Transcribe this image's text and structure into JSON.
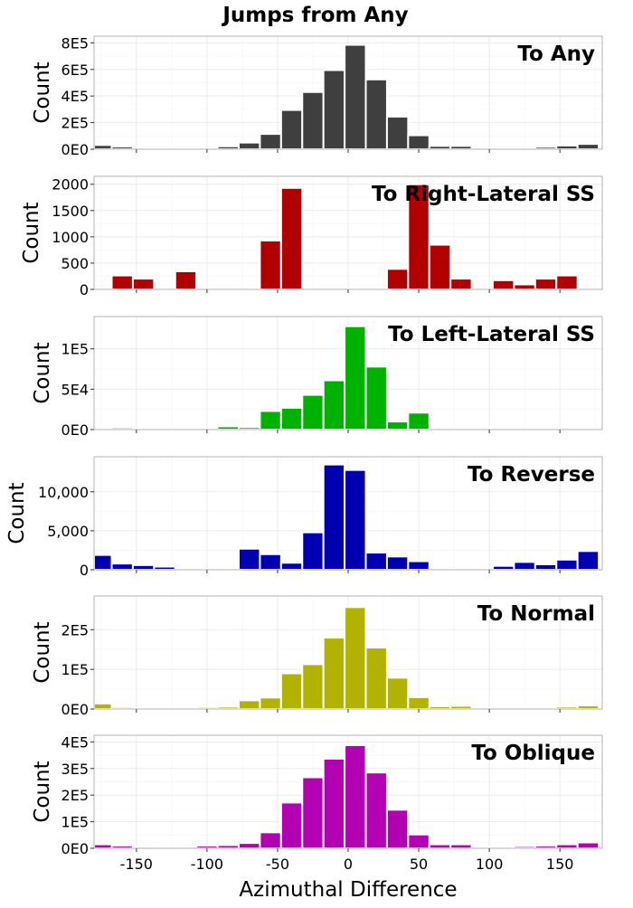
{
  "figure_title": "Jumps from Any",
  "x_axis_label": "Azimuthal Difference",
  "chart_data": [
    {
      "type": "bar",
      "title": "To Any",
      "xlabel": "Azimuthal Difference",
      "ylabel": "Count",
      "color": "#3f3f3f",
      "xlim": [
        -180,
        180
      ],
      "ylim": [
        0,
        850000
      ],
      "yticks": [
        0,
        200000,
        400000,
        600000,
        800000
      ],
      "ytick_labels": [
        "0E0",
        "2E5",
        "4E5",
        "6E5",
        "8E5"
      ],
      "x": [
        -175,
        -160,
        -145,
        -130,
        -115,
        -100,
        -85,
        -70,
        -55,
        -40,
        -25,
        -10,
        5,
        20,
        35,
        50,
        65,
        80,
        95,
        110,
        125,
        140,
        155,
        170
      ],
      "values": [
        32000,
        20000,
        12000,
        8000,
        8000,
        12000,
        22000,
        50000,
        115000,
        295000,
        430000,
        595000,
        785000,
        525000,
        245000,
        105000,
        25000,
        25000,
        10000,
        10000,
        12000,
        18000,
        28000,
        40000
      ]
    },
    {
      "type": "bar",
      "title": "To Right-Lateral SS",
      "xlabel": "Azimuthal Difference",
      "ylabel": "Count",
      "color": "#b20000",
      "xlim": [
        -180,
        180
      ],
      "ylim": [
        0,
        2150
      ],
      "yticks": [
        0,
        500,
        1000,
        1500,
        2000
      ],
      "ytick_labels": [
        "0",
        "500",
        "1000",
        "1500",
        "2000"
      ],
      "x": [
        -175,
        -160,
        -145,
        -130,
        -115,
        -100,
        -85,
        -70,
        -55,
        -40,
        -25,
        -10,
        5,
        20,
        35,
        50,
        65,
        80,
        95,
        110,
        125,
        140,
        155,
        170
      ],
      "values": [
        0,
        265,
        205,
        0,
        345,
        0,
        0,
        0,
        930,
        1930,
        0,
        15,
        15,
        0,
        390,
        2000,
        850,
        205,
        0,
        175,
        95,
        205,
        265,
        0
      ]
    },
    {
      "type": "bar",
      "title": "To Left-Lateral SS",
      "xlabel": "Azimuthal Difference",
      "ylabel": "Count",
      "color": "#00b200",
      "xlim": [
        -180,
        180
      ],
      "ylim": [
        0,
        140000
      ],
      "yticks": [
        0,
        50000,
        100000
      ],
      "ytick_labels": [
        "0E0",
        "5E4",
        "1E5"
      ],
      "x": [
        -175,
        -160,
        -145,
        -130,
        -115,
        -100,
        -85,
        -70,
        -55,
        -40,
        -25,
        -10,
        5,
        20,
        35,
        50,
        65,
        80,
        95,
        110,
        125,
        140,
        155,
        170
      ],
      "values": [
        1500,
        2500,
        1000,
        500,
        0,
        500,
        4000,
        3000,
        23000,
        27000,
        43000,
        61000,
        128000,
        78000,
        10000,
        21000,
        0,
        1000,
        2000,
        1000,
        0,
        1500,
        2000,
        2000
      ]
    },
    {
      "type": "bar",
      "title": "To Reverse",
      "xlabel": "Azimuthal Difference",
      "ylabel": "Count",
      "color": "#0000b2",
      "xlim": [
        -180,
        180
      ],
      "ylim": [
        0,
        14500
      ],
      "yticks": [
        0,
        5000,
        10000
      ],
      "ytick_labels": [
        "0",
        "5,000",
        "10,000"
      ],
      "x": [
        -175,
        -160,
        -145,
        -130,
        -115,
        -100,
        -85,
        -70,
        -55,
        -40,
        -25,
        -10,
        5,
        20,
        35,
        50,
        65,
        80,
        95,
        110,
        125,
        140,
        155,
        170
      ],
      "values": [
        1900,
        800,
        600,
        400,
        100,
        100,
        100,
        2700,
        2000,
        900,
        4800,
        13500,
        12800,
        2200,
        1700,
        1100,
        100,
        50,
        0,
        500,
        1000,
        700,
        1300,
        2400
      ]
    },
    {
      "type": "bar",
      "title": "To Normal",
      "xlabel": "Azimuthal Difference",
      "ylabel": "Count",
      "color": "#b2b200",
      "xlim": [
        -180,
        180
      ],
      "ylim": [
        0,
        285000
      ],
      "yticks": [
        0,
        100000,
        200000
      ],
      "ytick_labels": [
        "0E0",
        "1E5",
        "2E5"
      ],
      "x": [
        -175,
        -160,
        -145,
        -130,
        -115,
        -100,
        -85,
        -70,
        -55,
        -40,
        -25,
        -10,
        5,
        20,
        35,
        50,
        65,
        80,
        95,
        110,
        125,
        140,
        155,
        170
      ],
      "values": [
        14000,
        5000,
        3000,
        2000,
        2000,
        5000,
        6000,
        22000,
        29000,
        90000,
        113000,
        180000,
        257000,
        155000,
        79000,
        30000,
        7000,
        8000,
        3000,
        2000,
        3000,
        4000,
        6000,
        9000
      ]
    },
    {
      "type": "bar",
      "title": "To Oblique",
      "xlabel": "Azimuthal Difference",
      "ylabel": "Count",
      "color": "#b200b2",
      "xlim": [
        -180,
        180
      ],
      "ylim": [
        0,
        425000
      ],
      "yticks": [
        0,
        100000,
        200000,
        300000,
        400000
      ],
      "ytick_labels": [
        "0E0",
        "1E5",
        "2E5",
        "3E5",
        "4E5"
      ],
      "x": [
        -175,
        -160,
        -145,
        -130,
        -115,
        -100,
        -85,
        -70,
        -55,
        -40,
        -25,
        -10,
        5,
        20,
        35,
        50,
        65,
        80,
        95,
        110,
        125,
        140,
        155,
        170
      ],
      "values": [
        15000,
        10000,
        5000,
        3000,
        3000,
        10000,
        12000,
        20000,
        60000,
        172000,
        267000,
        337000,
        388000,
        285000,
        145000,
        52000,
        15000,
        15000,
        5000,
        5000,
        8000,
        10000,
        15000,
        22000
      ]
    }
  ],
  "xticks": [
    -150,
    -100,
    -50,
    0,
    50,
    100,
    150
  ],
  "xtick_labels": [
    "-150",
    "-100",
    "-50",
    "0",
    "50",
    "100",
    "150"
  ]
}
